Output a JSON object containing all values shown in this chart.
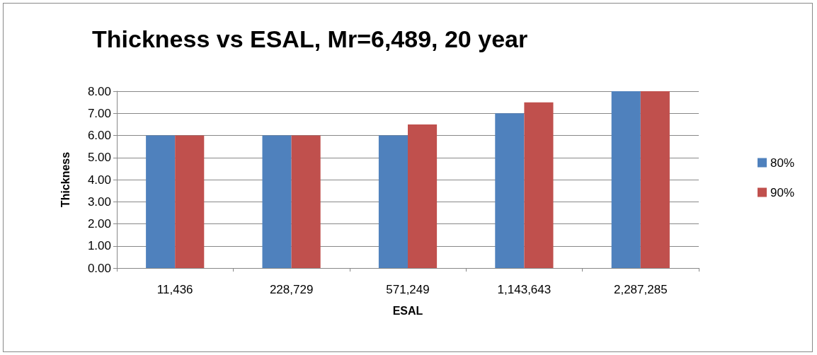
{
  "chart_data": {
    "type": "bar",
    "title": "Thickness vs ESAL, Mr=6,489, 20 year",
    "xlabel": "ESAL",
    "ylabel": "Thickness",
    "categories": [
      "11,436",
      "228,729",
      "571,249",
      "1,143,643",
      "2,287,285"
    ],
    "series": [
      {
        "name": "80%",
        "color": "#4f81bd",
        "values": [
          6,
          6,
          6,
          7,
          8
        ]
      },
      {
        "name": "90%",
        "color": "#c0504d",
        "values": [
          6,
          6,
          6.5,
          7.5,
          8
        ]
      }
    ],
    "ylim": [
      0,
      8
    ],
    "yticks": [
      {
        "value": 0,
        "label": "0.00"
      },
      {
        "value": 1,
        "label": "1.00"
      },
      {
        "value": 2,
        "label": "2.00"
      },
      {
        "value": 3,
        "label": "3.00"
      },
      {
        "value": 4,
        "label": "4.00"
      },
      {
        "value": 5,
        "label": "5.00"
      },
      {
        "value": 6,
        "label": "6.00"
      },
      {
        "value": 7,
        "label": "7.00"
      },
      {
        "value": 8,
        "label": "8.00"
      }
    ],
    "grid": "y",
    "legend": "right"
  }
}
